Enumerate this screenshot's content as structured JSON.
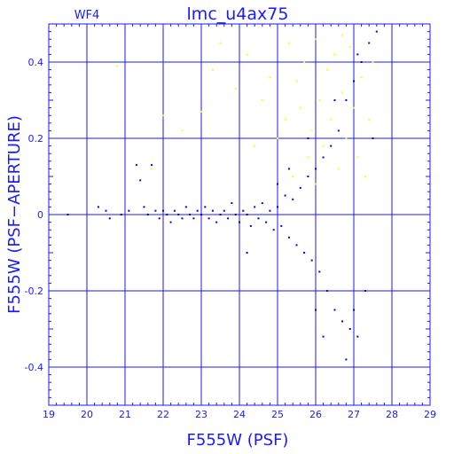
{
  "chart_data": {
    "type": "scatter",
    "title": "lmc_u4ax75",
    "panel_label": "WF4",
    "xlabel": "F555W (PSF)",
    "ylabel": "F555W (PSF−APERTURE)",
    "xlim": [
      19,
      29
    ],
    "ylim": [
      -0.5,
      0.5
    ],
    "x_ticks": [
      "19",
      "20",
      "21",
      "22",
      "23",
      "24",
      "25",
      "26",
      "27",
      "28",
      "29"
    ],
    "y_ticks": [
      "-0.4",
      "-0.2",
      "0",
      "0.2",
      "0.4"
    ],
    "grid": true,
    "colors": {
      "axes": "#1a1aff",
      "grid": "#1a1aff",
      "blue_points": "#0000ff",
      "yellow_points": "#ffff00"
    },
    "series": [
      {
        "color": "blue",
        "points": [
          [
            19.5,
            0.0
          ],
          [
            20.3,
            0.02
          ],
          [
            20.5,
            0.01
          ],
          [
            20.6,
            -0.01
          ],
          [
            20.9,
            0.0
          ],
          [
            21.1,
            0.01
          ],
          [
            21.3,
            0.13
          ],
          [
            21.4,
            0.09
          ],
          [
            21.5,
            0.02
          ],
          [
            21.6,
            0.0
          ],
          [
            21.7,
            0.13
          ],
          [
            21.8,
            0.01
          ],
          [
            21.9,
            -0.01
          ],
          [
            22.0,
            0.01
          ],
          [
            22.1,
            0.0
          ],
          [
            22.2,
            -0.02
          ],
          [
            22.3,
            0.01
          ],
          [
            22.4,
            0.0
          ],
          [
            22.5,
            -0.01
          ],
          [
            22.6,
            0.02
          ],
          [
            22.7,
            0.0
          ],
          [
            22.8,
            -0.01
          ],
          [
            22.9,
            0.01
          ],
          [
            23.0,
            0.0
          ],
          [
            23.1,
            0.02
          ],
          [
            23.2,
            -0.01
          ],
          [
            23.3,
            0.01
          ],
          [
            23.4,
            -0.02
          ],
          [
            23.5,
            0.0
          ],
          [
            23.6,
            0.01
          ],
          [
            23.7,
            -0.01
          ],
          [
            23.8,
            0.03
          ],
          [
            23.9,
            0.0
          ],
          [
            24.0,
            -0.02
          ],
          [
            24.1,
            0.01
          ],
          [
            24.2,
            0.0
          ],
          [
            24.3,
            -0.03
          ],
          [
            24.4,
            0.02
          ],
          [
            24.5,
            -0.01
          ],
          [
            24.6,
            0.03
          ],
          [
            24.7,
            -0.02
          ],
          [
            24.8,
            0.01
          ],
          [
            24.9,
            -0.04
          ],
          [
            25.0,
            0.02
          ],
          [
            25.1,
            -0.03
          ],
          [
            25.2,
            0.05
          ],
          [
            25.3,
            -0.06
          ],
          [
            25.4,
            0.04
          ],
          [
            25.5,
            -0.08
          ],
          [
            25.6,
            0.07
          ],
          [
            25.7,
            -0.1
          ],
          [
            25.8,
            0.1
          ],
          [
            25.9,
            -0.12
          ],
          [
            26.0,
            0.12
          ],
          [
            26.1,
            -0.15
          ],
          [
            26.2,
            0.15
          ],
          [
            26.3,
            -0.2
          ],
          [
            26.4,
            0.18
          ],
          [
            26.5,
            -0.25
          ],
          [
            26.6,
            0.22
          ],
          [
            26.7,
            -0.28
          ],
          [
            26.8,
            0.3
          ],
          [
            26.9,
            -0.3
          ],
          [
            27.0,
            0.35
          ],
          [
            27.1,
            -0.32
          ],
          [
            27.2,
            0.4
          ],
          [
            27.3,
            -0.2
          ],
          [
            27.4,
            0.45
          ],
          [
            27.5,
            0.2
          ],
          [
            27.6,
            0.48
          ],
          [
            24.2,
            -0.1
          ],
          [
            25.0,
            0.08
          ],
          [
            25.3,
            0.12
          ],
          [
            25.8,
            0.2
          ],
          [
            26.0,
            -0.25
          ],
          [
            26.5,
            0.3
          ],
          [
            26.8,
            -0.38
          ],
          [
            27.1,
            0.42
          ],
          [
            27.0,
            -0.25
          ],
          [
            26.2,
            -0.32
          ]
        ]
      },
      {
        "color": "yellow",
        "points": [
          [
            20.8,
            0.39
          ],
          [
            23.3,
            0.38
          ],
          [
            23.5,
            0.45
          ],
          [
            23.9,
            0.33
          ],
          [
            24.2,
            0.42
          ],
          [
            24.6,
            0.3
          ],
          [
            24.8,
            0.36
          ],
          [
            25.0,
            0.2
          ],
          [
            25.2,
            0.25
          ],
          [
            25.3,
            0.45
          ],
          [
            25.5,
            0.35
          ],
          [
            25.6,
            0.28
          ],
          [
            25.7,
            0.4
          ],
          [
            25.8,
            0.15
          ],
          [
            25.9,
            0.22
          ],
          [
            26.0,
            0.46
          ],
          [
            26.1,
            0.3
          ],
          [
            26.2,
            0.18
          ],
          [
            26.3,
            0.38
          ],
          [
            26.4,
            0.25
          ],
          [
            26.5,
            0.42
          ],
          [
            26.6,
            0.12
          ],
          [
            26.7,
            0.32
          ],
          [
            26.8,
            0.2
          ],
          [
            26.9,
            0.44
          ],
          [
            27.0,
            0.28
          ],
          [
            27.1,
            0.15
          ],
          [
            27.2,
            0.36
          ],
          [
            27.3,
            0.1
          ],
          [
            27.4,
            0.25
          ],
          [
            27.5,
            0.4
          ],
          [
            27.6,
            0.48
          ],
          [
            26.0,
            0.08
          ],
          [
            25.4,
            0.1
          ],
          [
            24.4,
            0.18
          ],
          [
            22.5,
            0.22
          ],
          [
            22.0,
            0.26
          ],
          [
            21.7,
            0.12
          ],
          [
            23.0,
            0.27
          ],
          [
            26.7,
            0.47
          ]
        ]
      }
    ]
  }
}
